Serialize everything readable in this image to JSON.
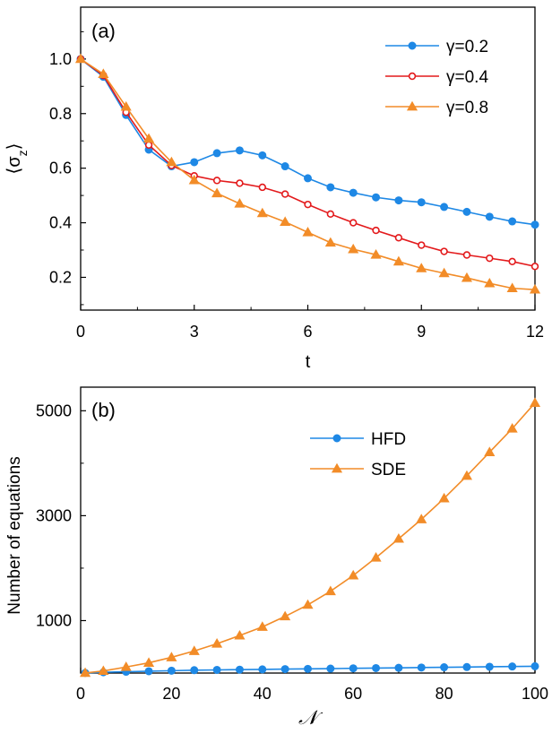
{
  "chart_data": [
    {
      "type": "line",
      "panel_label": "(a)",
      "xlabel": "t",
      "ylabel": "⟨σ_z⟩",
      "xlim": [
        0,
        12
      ],
      "ylim": [
        0.08,
        1.19
      ],
      "xticks": [
        0,
        3,
        6,
        9,
        12
      ],
      "yticks": [
        0.2,
        0.4,
        0.6,
        0.8,
        1.0
      ],
      "ytick_labels": [
        "0.2",
        "0.4",
        "0.6",
        "0.8",
        "1.0"
      ],
      "grid": false,
      "legend_position": "top-right",
      "x": [
        0,
        0.6,
        1.2,
        1.8,
        2.4,
        3.0,
        3.6,
        4.2,
        4.8,
        5.4,
        6.0,
        6.6,
        7.2,
        7.8,
        8.4,
        9.0,
        9.6,
        10.2,
        10.8,
        11.4,
        12.0
      ],
      "series": [
        {
          "name": "γ=0.2",
          "color": "#1E88E5",
          "marker": "filled-circle",
          "values": [
            1.0,
            0.935,
            0.795,
            0.668,
            0.607,
            0.622,
            0.655,
            0.665,
            0.647,
            0.607,
            0.563,
            0.53,
            0.51,
            0.493,
            0.482,
            0.475,
            0.458,
            0.44,
            0.422,
            0.405,
            0.393
          ]
        },
        {
          "name": "γ=0.4",
          "color": "#E31A1C",
          "marker": "open-circle",
          "values": [
            1.0,
            0.94,
            0.805,
            0.685,
            0.61,
            0.572,
            0.555,
            0.545,
            0.53,
            0.505,
            0.467,
            0.432,
            0.4,
            0.372,
            0.345,
            0.318,
            0.295,
            0.282,
            0.27,
            0.258,
            0.24
          ]
        },
        {
          "name": "γ=0.8",
          "color": "#F28C28",
          "marker": "filled-triangle",
          "values": [
            1.0,
            0.945,
            0.825,
            0.708,
            0.622,
            0.556,
            0.508,
            0.47,
            0.435,
            0.403,
            0.365,
            0.327,
            0.303,
            0.283,
            0.258,
            0.233,
            0.215,
            0.198,
            0.178,
            0.16,
            0.155
          ]
        }
      ]
    },
    {
      "type": "line",
      "panel_label": "(b)",
      "xlabel": "𝒩",
      "ylabel": "Number of equations",
      "xlim": [
        0,
        100
      ],
      "ylim": [
        0,
        5450
      ],
      "xticks": [
        0,
        20,
        40,
        60,
        80,
        100
      ],
      "yticks": [
        1000,
        3000,
        5000
      ],
      "ytick_labels": [
        "1000",
        "3000",
        "5000"
      ],
      "grid": false,
      "legend_position": "top-center",
      "x": [
        1,
        5,
        10,
        15,
        20,
        25,
        30,
        35,
        40,
        45,
        50,
        55,
        60,
        65,
        70,
        75,
        80,
        85,
        90,
        95,
        100
      ],
      "series": [
        {
          "name": "HFD",
          "color": "#1E88E5",
          "marker": "filled-circle",
          "values": [
            3,
            15,
            25,
            35,
            45,
            55,
            60,
            65,
            70,
            75,
            80,
            85,
            90,
            95,
            100,
            105,
            110,
            115,
            120,
            125,
            130
          ]
        },
        {
          "name": "SDE",
          "color": "#F28C28",
          "marker": "filled-triangle",
          "values": [
            2,
            40,
            115,
            195,
            300,
            420,
            560,
            715,
            880,
            1080,
            1300,
            1560,
            1860,
            2200,
            2560,
            2930,
            3330,
            3760,
            4210,
            4660,
            5150
          ]
        }
      ]
    }
  ]
}
